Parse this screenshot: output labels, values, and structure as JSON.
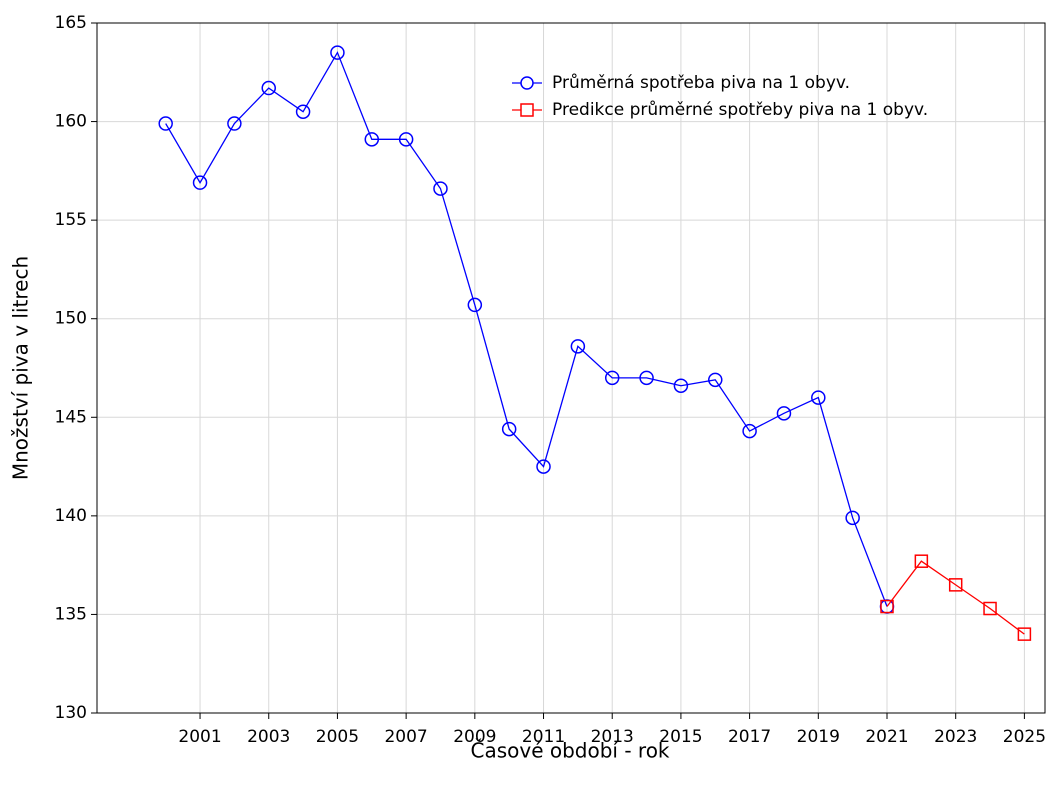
{
  "chart_data": {
    "type": "line",
    "xlabel": "Časové období - rok",
    "ylabel": "Množství piva v litrech",
    "x": [
      2000,
      2001,
      2002,
      2003,
      2004,
      2005,
      2006,
      2007,
      2008,
      2009,
      2010,
      2011,
      2012,
      2013,
      2014,
      2015,
      2016,
      2017,
      2018,
      2019,
      2020,
      2021,
      2022,
      2023,
      2024,
      2025
    ],
    "series": [
      {
        "name": "Průměrná spotřeba piva na 1 obyv.",
        "color": "#0000ff",
        "marker": "circle",
        "values": [
          159.9,
          156.9,
          159.9,
          161.7,
          160.5,
          163.5,
          159.1,
          159.1,
          156.6,
          150.7,
          144.4,
          142.5,
          148.6,
          147.0,
          147.0,
          146.6,
          146.9,
          144.3,
          145.2,
          146.0,
          139.9,
          135.4,
          null,
          null,
          null,
          null
        ]
      },
      {
        "name": "Predikce průměrné spotřeby piva na 1 obyv.",
        "color": "#ff0000",
        "marker": "square",
        "values": [
          null,
          null,
          null,
          null,
          null,
          null,
          null,
          null,
          null,
          null,
          null,
          null,
          null,
          null,
          null,
          null,
          null,
          null,
          null,
          null,
          null,
          135.4,
          137.7,
          136.5,
          135.3,
          134.0
        ]
      }
    ],
    "xlim": [
      1998,
      2025.6
    ],
    "xticks": [
      2001,
      2003,
      2005,
      2007,
      2009,
      2011,
      2013,
      2015,
      2017,
      2019,
      2021,
      2023,
      2025
    ],
    "ylim": [
      130,
      165
    ],
    "yticks": [
      130,
      135,
      140,
      145,
      150,
      155,
      160,
      165
    ],
    "grid": true,
    "legend": "upper right"
  }
}
